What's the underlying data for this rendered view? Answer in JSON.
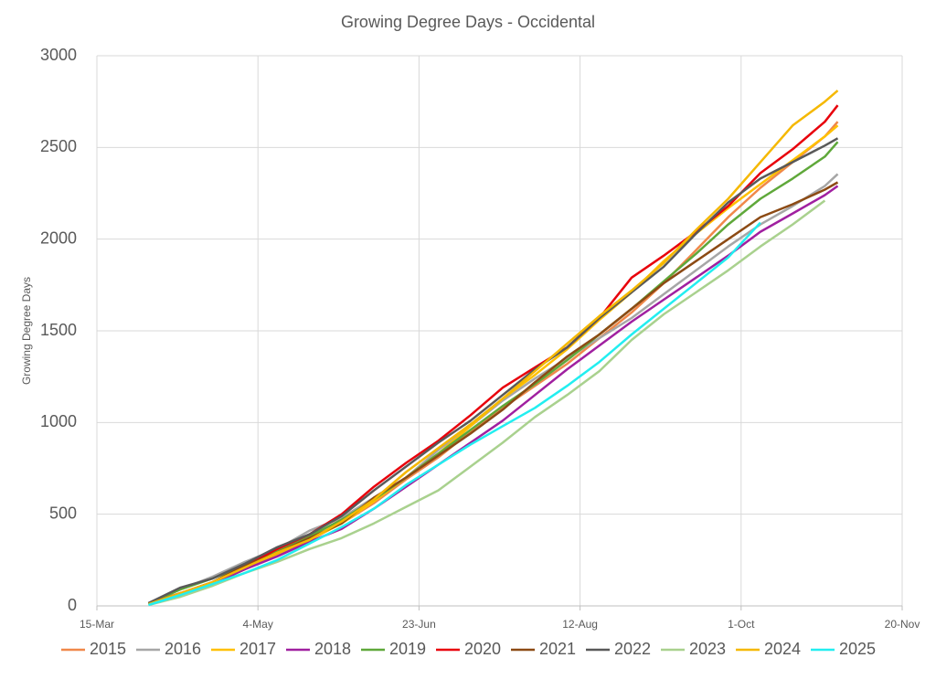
{
  "chart_data": {
    "type": "line",
    "title": "Growing Degree Days - Occidental",
    "y_label": "Growing Degree Days",
    "x": [
      90,
      100,
      110,
      120,
      130,
      140,
      150,
      160,
      170,
      180,
      190,
      200,
      210,
      220,
      230,
      240,
      250,
      260,
      270,
      280,
      290,
      300,
      304
    ],
    "xlim": [
      74,
      324
    ],
    "xticks": [
      {
        "value": 74,
        "label": "15-Mar"
      },
      {
        "value": 124,
        "label": "4-May"
      },
      {
        "value": 174,
        "label": "23-Jun"
      },
      {
        "value": 224,
        "label": "12-Aug"
      },
      {
        "value": 274,
        "label": "1-Oct"
      },
      {
        "value": 324,
        "label": "20-Nov"
      }
    ],
    "ylim": [
      0,
      3000
    ],
    "yticks": [
      0,
      500,
      1000,
      1500,
      2000,
      2500,
      3000
    ],
    "grid": true,
    "legend": "bottom",
    "series": [
      {
        "name": "2015",
        "color": "#f0884a",
        "values": [
          15,
          70,
          130,
          200,
          280,
          360,
          450,
          560,
          690,
          810,
          950,
          1080,
          1200,
          1320,
          1460,
          1600,
          1760,
          1940,
          2120,
          2280,
          2420,
          2560,
          2640
        ]
      },
      {
        "name": "2016",
        "color": "#a6a6a6",
        "values": [
          15,
          90,
          160,
          240,
          310,
          410,
          480,
          590,
          700,
          850,
          980,
          1120,
          1240,
          1350,
          1460,
          1570,
          1700,
          1830,
          1960,
          2080,
          2180,
          2290,
          2355
        ]
      },
      {
        "name": "2017",
        "color": "#ffc000",
        "values": [
          10,
          60,
          120,
          200,
          280,
          360,
          450,
          570,
          700,
          830,
          980,
          1130,
          1260,
          1400,
          1560,
          1710,
          1880,
          2030,
          2170,
          2300,
          2430,
          2560,
          2620
        ]
      },
      {
        "name": "2018",
        "color": "#a020a0",
        "values": [
          10,
          70,
          120,
          200,
          270,
          350,
          420,
          530,
          650,
          770,
          890,
          1010,
          1150,
          1290,
          1420,
          1550,
          1670,
          1790,
          1910,
          2040,
          2140,
          2240,
          2290
        ]
      },
      {
        "name": "2019",
        "color": "#5fa83a",
        "values": [
          10,
          90,
          150,
          220,
          300,
          380,
          470,
          580,
          700,
          830,
          960,
          1090,
          1210,
          1340,
          1480,
          1620,
          1770,
          1920,
          2080,
          2220,
          2330,
          2450,
          2530
        ]
      },
      {
        "name": "2020",
        "color": "#e8000b",
        "values": [
          10,
          70,
          130,
          220,
          310,
          390,
          500,
          650,
          780,
          900,
          1040,
          1190,
          1300,
          1410,
          1570,
          1790,
          1910,
          2040,
          2180,
          2360,
          2490,
          2640,
          2730
        ]
      },
      {
        "name": "2021",
        "color": "#8c4a14",
        "values": [
          10,
          60,
          130,
          220,
          290,
          370,
          450,
          590,
          700,
          820,
          940,
          1070,
          1220,
          1360,
          1480,
          1620,
          1760,
          1880,
          2000,
          2120,
          2190,
          2270,
          2310
        ]
      },
      {
        "name": "2022",
        "color": "#595959",
        "values": [
          15,
          100,
          150,
          230,
          320,
          390,
          490,
          630,
          760,
          890,
          1010,
          1150,
          1290,
          1410,
          1570,
          1710,
          1850,
          2030,
          2200,
          2330,
          2420,
          2510,
          2550
        ]
      },
      {
        "name": "2023",
        "color": "#a9d18e",
        "values": [
          5,
          50,
          110,
          180,
          240,
          310,
          370,
          450,
          540,
          630,
          760,
          890,
          1030,
          1150,
          1280,
          1450,
          1590,
          1710,
          1830,
          1960,
          2080,
          2210,
          null
        ]
      },
      {
        "name": "2024",
        "color": "#f5b800",
        "values": [
          10,
          70,
          130,
          210,
          290,
          360,
          460,
          580,
          730,
          860,
          990,
          1130,
          1280,
          1430,
          1580,
          1720,
          1870,
          2050,
          2220,
          2420,
          2620,
          2750,
          2810
        ]
      },
      {
        "name": "2025",
        "color": "#22eef0",
        "values": [
          5,
          60,
          120,
          180,
          250,
          340,
          430,
          530,
          660,
          770,
          880,
          980,
          1080,
          1200,
          1330,
          1480,
          1620,
          1760,
          1900,
          2090,
          null,
          null,
          null
        ]
      }
    ]
  }
}
